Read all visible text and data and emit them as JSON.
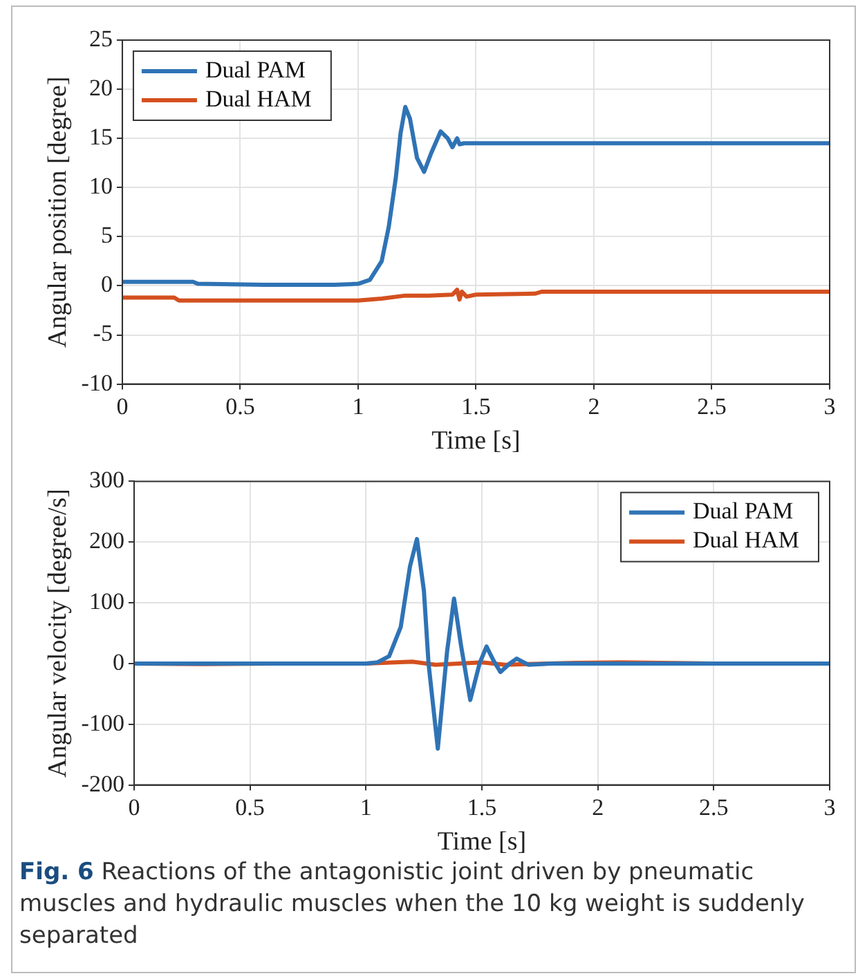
{
  "chart_data": [
    {
      "type": "line",
      "xlabel": "Time [s]",
      "ylabel": "Angular position [degree]",
      "xlim": [
        0,
        3
      ],
      "xticks": [
        0,
        0.5,
        1,
        1.5,
        2,
        2.5,
        3
      ],
      "ylim": [
        -10,
        25
      ],
      "yticks": [
        -10,
        -5,
        0,
        5,
        10,
        15,
        20,
        25
      ],
      "grid": true,
      "legend": "top left",
      "marker": "none",
      "line_style": "solid",
      "series": [
        {
          "name": "Dual PAM",
          "color": "#2f73b5",
          "x": [
            0,
            0.3,
            0.32,
            0.6,
            0.9,
            1.0,
            1.05,
            1.1,
            1.13,
            1.16,
            1.18,
            1.2,
            1.22,
            1.25,
            1.28,
            1.31,
            1.35,
            1.38,
            1.4,
            1.42,
            1.43,
            1.45,
            2,
            2.5,
            3
          ],
          "values": [
            0.4,
            0.4,
            0.2,
            0.1,
            0.1,
            0.2,
            0.6,
            2.5,
            6,
            11,
            15.5,
            18.2,
            17,
            13,
            11.6,
            13.5,
            15.7,
            15,
            14.1,
            15,
            14.4,
            14.5,
            14.5,
            14.5,
            14.5
          ]
        },
        {
          "name": "Dual HAM",
          "color": "#d4501f",
          "x": [
            0,
            0.22,
            0.24,
            0.6,
            1.0,
            1.1,
            1.2,
            1.3,
            1.4,
            1.42,
            1.43,
            1.44,
            1.46,
            1.5,
            1.75,
            1.78,
            2,
            2.5,
            3
          ],
          "values": [
            -1.2,
            -1.2,
            -1.5,
            -1.5,
            -1.5,
            -1.3,
            -1.0,
            -1.0,
            -0.9,
            -0.4,
            -1.4,
            -0.6,
            -1.1,
            -0.9,
            -0.8,
            -0.6,
            -0.6,
            -0.6,
            -0.6
          ]
        }
      ]
    },
    {
      "type": "line",
      "xlabel": "Time [s]",
      "ylabel": "Angular velocity [degree/s]",
      "xlim": [
        0,
        3
      ],
      "xticks": [
        0,
        0.5,
        1,
        1.5,
        2,
        2.5,
        3
      ],
      "ylim": [
        -200,
        300
      ],
      "yticks": [
        -200,
        -100,
        0,
        100,
        200,
        300
      ],
      "grid": true,
      "legend": "top right",
      "marker": "none",
      "line_style": "solid",
      "annotations": [
        "Fig. 6  Reactions of the antagonistic joint driven by pneumatic muscles and hydraulic muscles when the 10 kg weight is suddenly separated"
      ],
      "series": [
        {
          "name": "Dual PAM",
          "color": "#2f73b5",
          "x": [
            0,
            1.0,
            1.05,
            1.1,
            1.15,
            1.19,
            1.22,
            1.25,
            1.27,
            1.31,
            1.35,
            1.38,
            1.41,
            1.45,
            1.49,
            1.52,
            1.55,
            1.58,
            1.62,
            1.65,
            1.7,
            1.8,
            2,
            2.5,
            3
          ],
          "values": [
            0,
            0,
            2,
            12,
            60,
            160,
            205,
            120,
            0,
            -140,
            20,
            107,
            30,
            -60,
            0,
            28,
            5,
            -14,
            0,
            8,
            -2,
            0,
            0,
            0,
            0
          ]
        },
        {
          "name": "Dual HAM",
          "color": "#d4501f",
          "x": [
            0,
            0.3,
            0.6,
            1.0,
            1.2,
            1.3,
            1.5,
            1.6,
            1.9,
            2.1,
            2.5,
            3
          ],
          "values": [
            0,
            -1,
            0,
            0,
            3,
            -2,
            2,
            -2,
            1,
            2,
            0,
            0
          ]
        }
      ]
    }
  ]
}
